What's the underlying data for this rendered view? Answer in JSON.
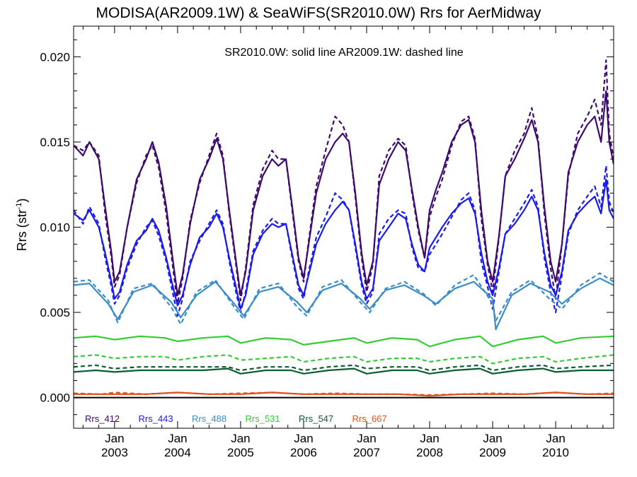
{
  "title": "MODISA(AR2009.1W) & SeaWiFS(SR2010.0W)  Rrs for AerMidway",
  "annotation": "SR2010.0W: solid line   AR2009.1W: dashed line",
  "ylabel": "Rrs (str",
  "ylabel_sup": "-1",
  "ylabel_close": ")",
  "chart_data": {
    "type": "line",
    "title": "MODISA(AR2009.1W) & SeaWiFS(SR2010.0W)  Rrs for AerMidway",
    "ylabel": "Rrs (str-1)",
    "xlim": [
      2002.35,
      2010.92
    ],
    "ylim": [
      -0.0018,
      0.0218
    ],
    "y_ticks": [
      "0.000",
      "0.005",
      "0.010",
      "0.015",
      "0.020"
    ],
    "y_tick_values": [
      0.0,
      0.005,
      0.01,
      0.015,
      0.02
    ],
    "x_ticks": [
      {
        "month": "Jan",
        "year": "2003",
        "value": 2003
      },
      {
        "month": "Jan",
        "year": "2004",
        "value": 2004
      },
      {
        "month": "Jan",
        "year": "2005",
        "value": 2005
      },
      {
        "month": "Jan",
        "year": "2006",
        "value": 2006
      },
      {
        "month": "Jan",
        "year": "2007",
        "value": 2007
      },
      {
        "month": "Jan",
        "year": "2008",
        "value": 2008
      },
      {
        "month": "Jan",
        "year": "2009",
        "value": 2009
      },
      {
        "month": "Jan",
        "year": "2010",
        "value": 2010
      }
    ],
    "reference_line": 0.0,
    "legend_position": "bottom-left",
    "line_styles": {
      "solid": "SR2010.0W",
      "dashed": "AR2009.1W"
    },
    "series": [
      {
        "name": "Rrs_412",
        "color": "#3d0a6e",
        "x": [
          2002.35,
          2002.5,
          2002.6,
          2002.75,
          2002.85,
          2002.95,
          2003.0,
          2003.08,
          2003.2,
          2003.35,
          2003.5,
          2003.6,
          2003.7,
          2003.82,
          2003.92,
          2004.0,
          2004.08,
          2004.2,
          2004.35,
          2004.5,
          2004.62,
          2004.72,
          2004.82,
          2004.92,
          2005.0,
          2005.08,
          2005.2,
          2005.35,
          2005.5,
          2005.6,
          2005.72,
          2005.82,
          2005.92,
          2006.0,
          2006.08,
          2006.2,
          2006.35,
          2006.5,
          2006.62,
          2006.72,
          2006.82,
          2006.92,
          2007.0,
          2007.1,
          2007.2,
          2007.35,
          2007.5,
          2007.62,
          2007.72,
          2007.82,
          2007.92,
          2008.0,
          2008.1,
          2008.2,
          2008.35,
          2008.5,
          2008.62,
          2008.72,
          2008.82,
          2008.92,
          2009.0,
          2009.1,
          2009.2,
          2009.35,
          2009.5,
          2009.62,
          2009.72,
          2009.82,
          2009.92,
          2010.0,
          2010.1,
          2010.2,
          2010.35,
          2010.5,
          2010.62,
          2010.72,
          2010.8,
          2010.85,
          2010.92
        ],
        "y_solid": [
          0.0148,
          0.0142,
          0.015,
          0.014,
          0.0112,
          0.0085,
          0.0068,
          0.0074,
          0.01,
          0.0128,
          0.014,
          0.015,
          0.0138,
          0.0112,
          0.0082,
          0.006,
          0.0072,
          0.0102,
          0.0128,
          0.014,
          0.0152,
          0.014,
          0.011,
          0.0082,
          0.006,
          0.0074,
          0.011,
          0.013,
          0.014,
          0.0136,
          0.014,
          0.0112,
          0.0082,
          0.007,
          0.009,
          0.012,
          0.014,
          0.015,
          0.0155,
          0.015,
          0.012,
          0.0085,
          0.0066,
          0.008,
          0.0125,
          0.014,
          0.015,
          0.0145,
          0.0122,
          0.01,
          0.0082,
          0.011,
          0.0122,
          0.0132,
          0.015,
          0.016,
          0.0163,
          0.015,
          0.011,
          0.008,
          0.0068,
          0.0095,
          0.013,
          0.014,
          0.0152,
          0.0163,
          0.015,
          0.0112,
          0.008,
          0.0068,
          0.009,
          0.0132,
          0.015,
          0.016,
          0.0165,
          0.015,
          0.018,
          0.015,
          0.0137
        ],
        "y_dashed": [
          0.0148,
          0.0145,
          0.015,
          0.0142,
          0.0108,
          0.0082,
          0.0065,
          0.0072,
          0.01,
          0.0126,
          0.0142,
          0.0148,
          0.0135,
          0.0108,
          0.0078,
          0.0055,
          0.007,
          0.0104,
          0.0126,
          0.0142,
          0.0155,
          0.0142,
          0.0108,
          0.008,
          0.0057,
          0.0076,
          0.0113,
          0.0134,
          0.0145,
          0.014,
          0.014,
          0.011,
          0.008,
          0.0068,
          0.0092,
          0.0124,
          0.0145,
          0.0165,
          0.016,
          0.015,
          0.0118,
          0.0082,
          0.0062,
          0.0078,
          0.013,
          0.0145,
          0.0152,
          0.0148,
          0.012,
          0.0098,
          0.0082,
          0.0106,
          0.0118,
          0.0128,
          0.0148,
          0.0162,
          0.0165,
          0.0152,
          0.0105,
          0.0078,
          0.0062,
          0.0094,
          0.013,
          0.0145,
          0.0155,
          0.017,
          0.0152,
          0.0108,
          0.0076,
          0.0058,
          0.009,
          0.013,
          0.0155,
          0.0165,
          0.0175,
          0.016,
          0.0198,
          0.0155,
          0.014
        ]
      },
      {
        "name": "Rrs_443",
        "color": "#1a1aee",
        "x": [
          2002.35,
          2002.5,
          2002.6,
          2002.75,
          2002.85,
          2002.95,
          2003.0,
          2003.08,
          2003.2,
          2003.35,
          2003.5,
          2003.6,
          2003.7,
          2003.82,
          2003.92,
          2004.0,
          2004.08,
          2004.2,
          2004.35,
          2004.5,
          2004.62,
          2004.72,
          2004.82,
          2004.92,
          2005.0,
          2005.08,
          2005.2,
          2005.35,
          2005.5,
          2005.6,
          2005.72,
          2005.82,
          2005.92,
          2006.0,
          2006.08,
          2006.2,
          2006.35,
          2006.5,
          2006.62,
          2006.72,
          2006.82,
          2006.92,
          2007.0,
          2007.1,
          2007.2,
          2007.35,
          2007.5,
          2007.62,
          2007.72,
          2007.82,
          2007.92,
          2008.0,
          2008.1,
          2008.2,
          2008.35,
          2008.5,
          2008.62,
          2008.72,
          2008.82,
          2008.92,
          2009.0,
          2009.1,
          2009.2,
          2009.35,
          2009.5,
          2009.62,
          2009.72,
          2009.82,
          2009.92,
          2010.0,
          2010.1,
          2010.2,
          2010.35,
          2010.5,
          2010.62,
          2010.72,
          2010.8,
          2010.85,
          2010.92
        ],
        "y_solid": [
          0.0108,
          0.0104,
          0.011,
          0.01,
          0.0085,
          0.0068,
          0.0058,
          0.0062,
          0.0078,
          0.0092,
          0.0098,
          0.0105,
          0.0098,
          0.0082,
          0.0066,
          0.0054,
          0.006,
          0.0078,
          0.0094,
          0.01,
          0.0108,
          0.01,
          0.0082,
          0.0066,
          0.0052,
          0.006,
          0.0084,
          0.0096,
          0.0102,
          0.01,
          0.0102,
          0.0084,
          0.0066,
          0.006,
          0.0072,
          0.009,
          0.0102,
          0.011,
          0.0115,
          0.011,
          0.009,
          0.0068,
          0.0058,
          0.0064,
          0.0092,
          0.01,
          0.0108,
          0.0105,
          0.009,
          0.0078,
          0.0074,
          0.0088,
          0.0094,
          0.01,
          0.0108,
          0.0114,
          0.0117,
          0.0108,
          0.0085,
          0.0068,
          0.006,
          0.0076,
          0.0096,
          0.0102,
          0.011,
          0.0118,
          0.011,
          0.0085,
          0.0066,
          0.006,
          0.0074,
          0.0098,
          0.0108,
          0.0114,
          0.0118,
          0.0108,
          0.0128,
          0.011,
          0.0105
        ],
        "y_dashed": [
          0.011,
          0.0102,
          0.0112,
          0.0102,
          0.0082,
          0.0065,
          0.0055,
          0.006,
          0.0076,
          0.009,
          0.01,
          0.0104,
          0.0095,
          0.008,
          0.0062,
          0.0048,
          0.0058,
          0.008,
          0.0092,
          0.0102,
          0.011,
          0.0102,
          0.008,
          0.0063,
          0.005,
          0.0062,
          0.0086,
          0.0098,
          0.0105,
          0.0102,
          0.0102,
          0.0082,
          0.0064,
          0.0058,
          0.0074,
          0.0094,
          0.0106,
          0.012,
          0.0116,
          0.011,
          0.0088,
          0.0066,
          0.0055,
          0.0062,
          0.0096,
          0.0105,
          0.011,
          0.0108,
          0.0088,
          0.0076,
          0.0074,
          0.0084,
          0.009,
          0.0096,
          0.0106,
          0.0116,
          0.012,
          0.011,
          0.008,
          0.0065,
          0.0052,
          0.0074,
          0.0096,
          0.0105,
          0.0114,
          0.0122,
          0.0112,
          0.0082,
          0.0062,
          0.005,
          0.0072,
          0.0096,
          0.011,
          0.0118,
          0.0124,
          0.0112,
          0.0136,
          0.0115,
          0.0108
        ]
      },
      {
        "name": "Rrs_488",
        "color": "#3a8cc8",
        "x": [
          2002.35,
          2002.6,
          2002.9,
          2003.05,
          2003.3,
          2003.6,
          2003.9,
          2004.05,
          2004.3,
          2004.6,
          2004.9,
          2005.05,
          2005.3,
          2005.6,
          2005.9,
          2006.05,
          2006.3,
          2006.6,
          2006.9,
          2007.05,
          2007.3,
          2007.6,
          2007.9,
          2008.1,
          2008.4,
          2008.7,
          2009.0,
          2009.05,
          2009.3,
          2009.6,
          2009.9,
          2010.1,
          2010.4,
          2010.7,
          2010.92
        ],
        "y_solid": [
          0.0066,
          0.0067,
          0.0055,
          0.0046,
          0.0062,
          0.0066,
          0.0056,
          0.0047,
          0.006,
          0.0068,
          0.0055,
          0.0048,
          0.0062,
          0.0065,
          0.0056,
          0.005,
          0.0063,
          0.0067,
          0.0058,
          0.0052,
          0.0063,
          0.0066,
          0.006,
          0.0055,
          0.0064,
          0.0068,
          0.0058,
          0.004,
          0.006,
          0.0067,
          0.0062,
          0.0055,
          0.0064,
          0.007,
          0.0066
        ],
        "y_dashed": [
          0.0068,
          0.0069,
          0.0057,
          0.0044,
          0.0064,
          0.0067,
          0.0053,
          0.0043,
          0.0062,
          0.0069,
          0.0053,
          0.0046,
          0.0064,
          0.0067,
          0.0053,
          0.0048,
          0.0065,
          0.0069,
          0.0056,
          0.005,
          0.0064,
          0.0068,
          0.0061,
          0.0054,
          0.0066,
          0.0072,
          0.0055,
          0.0045,
          0.0062,
          0.0069,
          0.0058,
          0.0052,
          0.0066,
          0.0073,
          0.0068
        ]
      },
      {
        "name": "Rrs_531",
        "color": "#33cc33",
        "x": [
          2002.35,
          2002.7,
          2003.0,
          2003.4,
          2003.8,
          2004.0,
          2004.4,
          2004.8,
          2005.0,
          2005.4,
          2005.8,
          2006.0,
          2006.4,
          2006.8,
          2007.0,
          2007.4,
          2007.8,
          2008.0,
          2008.4,
          2008.8,
          2009.0,
          2009.4,
          2009.8,
          2010.0,
          2010.4,
          2010.92
        ],
        "y_solid": [
          0.0035,
          0.0036,
          0.0034,
          0.0036,
          0.0035,
          0.0033,
          0.0035,
          0.0036,
          0.0032,
          0.0035,
          0.0034,
          0.0031,
          0.0033,
          0.0035,
          0.0032,
          0.0035,
          0.0034,
          0.003,
          0.0034,
          0.0036,
          0.003,
          0.0034,
          0.0036,
          0.0032,
          0.0035,
          0.0036
        ],
        "y_dashed": [
          0.0024,
          0.0025,
          0.0023,
          0.0024,
          0.0024,
          0.0022,
          0.0024,
          0.0025,
          0.0022,
          0.0023,
          0.0024,
          0.0021,
          0.0023,
          0.0024,
          0.0021,
          0.0023,
          0.0023,
          0.0021,
          0.0023,
          0.0024,
          0.002,
          0.0023,
          0.0024,
          0.0021,
          0.0023,
          0.0025
        ]
      },
      {
        "name": "Rrs_547",
        "color": "#0a5c32",
        "x": [
          2002.35,
          2002.7,
          2003.0,
          2003.4,
          2003.8,
          2004.0,
          2004.4,
          2004.8,
          2005.0,
          2005.4,
          2005.8,
          2006.0,
          2006.4,
          2006.8,
          2007.0,
          2007.4,
          2007.8,
          2008.0,
          2008.4,
          2008.8,
          2009.0,
          2009.4,
          2009.8,
          2010.0,
          2010.4,
          2010.92
        ],
        "y_solid": [
          0.0015,
          0.0016,
          0.0015,
          0.0016,
          0.0016,
          0.0016,
          0.0016,
          0.0017,
          0.0014,
          0.0016,
          0.0016,
          0.0014,
          0.0016,
          0.0017,
          0.0014,
          0.0016,
          0.0016,
          0.0014,
          0.0016,
          0.0017,
          0.0014,
          0.0016,
          0.0017,
          0.0015,
          0.0016,
          0.0016
        ],
        "y_dashed": [
          0.0018,
          0.0019,
          0.0017,
          0.0018,
          0.0018,
          0.0018,
          0.0018,
          0.0018,
          0.0016,
          0.0018,
          0.0018,
          0.0016,
          0.0018,
          0.0019,
          0.0017,
          0.0018,
          0.0018,
          0.0016,
          0.0018,
          0.0019,
          0.0016,
          0.0018,
          0.0019,
          0.0017,
          0.0018,
          0.0019
        ]
      },
      {
        "name": "Rrs_667",
        "color": "#e0501a",
        "x": [
          2002.35,
          2002.8,
          2003.0,
          2003.5,
          2004.0,
          2004.5,
          2005.0,
          2005.5,
          2006.0,
          2006.5,
          2007.0,
          2007.5,
          2008.0,
          2008.5,
          2009.0,
          2009.5,
          2010.0,
          2010.5,
          2010.92
        ],
        "y_solid": [
          0.0002,
          0.0002,
          0.0002,
          0.0002,
          0.0003,
          0.0002,
          0.0002,
          0.0003,
          0.0002,
          0.0002,
          0.0002,
          0.0002,
          0.0001,
          0.0002,
          0.0002,
          0.0002,
          0.0003,
          0.0002,
          0.0002
        ],
        "y_dashed": [
          0.00025,
          0.0002,
          0.0003,
          0.0002,
          0.0003,
          0.0002,
          0.00025,
          0.0003,
          0.0002,
          0.00025,
          0.0002,
          0.0002,
          0.00015,
          0.0002,
          0.00025,
          0.0002,
          0.0003,
          0.0002,
          0.00025
        ]
      }
    ]
  }
}
